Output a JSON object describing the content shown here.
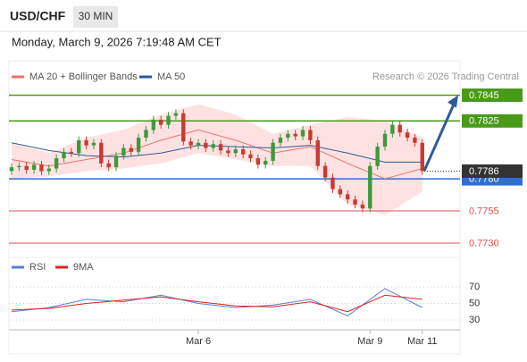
{
  "header": {
    "symbol": "USD/CHF",
    "timeframe": "30 MIN",
    "timestamp": "Monday, March 9, 2026 7:19:48 AM CET"
  },
  "chart_data": [
    {
      "type": "candlestick",
      "source": "Research © 2026 Trading Central",
      "up_color": "#3d9a3d",
      "down_color": "#c93a32",
      "ylim": [
        0.7721,
        0.7853
      ],
      "categories": [
        null,
        null,
        null,
        null,
        null,
        null,
        null,
        null,
        null,
        null,
        null,
        null,
        null,
        null,
        null,
        null,
        null,
        null,
        null,
        null,
        null,
        null,
        null,
        null,
        null,
        "Mar 6",
        null,
        null,
        null,
        null,
        null,
        null,
        null,
        null,
        null,
        null,
        null,
        null,
        null,
        null,
        null,
        null,
        null,
        null,
        null,
        null,
        null,
        null,
        "Mar 9",
        null,
        null,
        null,
        null,
        null,
        null,
        "Mar 11"
      ],
      "open": [
        0.7786,
        0.7789,
        0.779,
        0.7787,
        0.7791,
        0.7786,
        0.7788,
        0.7796,
        0.7801,
        0.78,
        0.781,
        0.7806,
        0.7808,
        0.7792,
        0.7789,
        0.7798,
        0.7804,
        0.7801,
        0.7812,
        0.7818,
        0.7826,
        0.7822,
        0.7829,
        0.7831,
        0.7809,
        0.7806,
        0.7808,
        0.7804,
        0.7807,
        0.7802,
        0.78,
        0.7803,
        0.7799,
        0.7796,
        0.7791,
        0.7794,
        0.7808,
        0.7812,
        0.7815,
        0.7813,
        0.7818,
        0.781,
        0.779,
        0.7781,
        0.7772,
        0.7768,
        0.7764,
        0.776,
        0.7757,
        0.779,
        0.7805,
        0.7815,
        0.7822,
        0.7816,
        0.7812,
        0.7808
      ],
      "high": [
        0.7792,
        0.7793,
        0.7793,
        0.7794,
        0.7794,
        0.7791,
        0.7799,
        0.7804,
        0.7804,
        0.7813,
        0.7813,
        0.7811,
        0.7811,
        0.7795,
        0.7801,
        0.7807,
        0.7807,
        0.7815,
        0.7821,
        0.7829,
        0.7829,
        0.7832,
        0.7834,
        0.7834,
        0.7812,
        0.7811,
        0.7811,
        0.781,
        0.781,
        0.7805,
        0.7806,
        0.7806,
        0.7802,
        0.7799,
        0.7797,
        0.7811,
        0.7815,
        0.7818,
        0.7818,
        0.7821,
        0.7821,
        0.7813,
        0.7793,
        0.7784,
        0.7775,
        0.7771,
        0.7767,
        0.7763,
        0.7793,
        0.7808,
        0.7818,
        0.7825,
        0.7825,
        0.7819,
        0.7815,
        0.7811
      ],
      "low": [
        0.7783,
        0.7786,
        0.7784,
        0.7784,
        0.7783,
        0.7783,
        0.7785,
        0.7793,
        0.7797,
        0.7797,
        0.7803,
        0.7803,
        0.7789,
        0.7786,
        0.7786,
        0.7795,
        0.7798,
        0.7798,
        0.7809,
        0.7815,
        0.7819,
        0.7819,
        0.7826,
        0.7806,
        0.7803,
        0.7803,
        0.7801,
        0.7801,
        0.7799,
        0.7797,
        0.7797,
        0.7796,
        0.7793,
        0.7788,
        0.7788,
        0.7791,
        0.7805,
        0.7809,
        0.781,
        0.781,
        0.7807,
        0.7787,
        0.7778,
        0.7769,
        0.7765,
        0.7761,
        0.7757,
        0.7754,
        0.7754,
        0.7787,
        0.7802,
        0.7812,
        0.7813,
        0.7809,
        0.7805,
        0.7783
      ],
      "close": [
        0.7789,
        0.779,
        0.7787,
        0.7791,
        0.7786,
        0.7788,
        0.7796,
        0.7801,
        0.78,
        0.781,
        0.7806,
        0.7808,
        0.7792,
        0.7789,
        0.7798,
        0.7804,
        0.7801,
        0.7812,
        0.7818,
        0.7826,
        0.7822,
        0.7829,
        0.7831,
        0.7809,
        0.7806,
        0.7808,
        0.7804,
        0.7807,
        0.7802,
        0.78,
        0.7803,
        0.7799,
        0.7796,
        0.7791,
        0.7794,
        0.7808,
        0.7812,
        0.7815,
        0.7813,
        0.7818,
        0.781,
        0.779,
        0.7781,
        0.7772,
        0.7768,
        0.7764,
        0.776,
        0.7757,
        0.779,
        0.7805,
        0.7815,
        0.7822,
        0.7816,
        0.7812,
        0.7808,
        0.7786
      ],
      "x": [
        0,
        5,
        10,
        15,
        20,
        25,
        30,
        35,
        40,
        45,
        50,
        55
      ],
      "series": [
        {
          "name": "MA 20 + Bollinger Bands",
          "color": "#f07070",
          "band_color": "#fdd5d5",
          "values": [
            0.7795,
            0.779,
            0.7795,
            0.78,
            0.781,
            0.7818,
            0.781,
            0.78,
            0.7805,
            0.7792,
            0.778,
            0.7788
          ],
          "upper": [
            0.7808,
            0.78,
            0.7812,
            0.7818,
            0.783,
            0.7838,
            0.783,
            0.7815,
            0.7822,
            0.7828,
            0.7825,
            0.7812
          ],
          "lower": [
            0.778,
            0.7782,
            0.7786,
            0.7788,
            0.7792,
            0.78,
            0.7795,
            0.779,
            0.779,
            0.776,
            0.7752,
            0.777
          ]
        },
        {
          "name": "MA 50",
          "color": "#2d5a99",
          "values": [
            0.7808,
            0.7802,
            0.7798,
            0.7797,
            0.78,
            0.7806,
            0.7805,
            0.7804,
            0.7806,
            0.78,
            0.7793,
            0.7793
          ]
        }
      ],
      "levels": [
        {
          "value": 0.7845,
          "label": "0.7845",
          "color": "#4a9a1a",
          "boxed": true
        },
        {
          "value": 0.7825,
          "label": "0.7825",
          "color": "#4a9a1a",
          "boxed": true
        },
        {
          "value": 0.778,
          "label": "0.7780",
          "color": "#2e6fd6",
          "boxed": true
        },
        {
          "value": 0.7755,
          "label": "0.7755",
          "color": "#e05050",
          "boxed": false
        },
        {
          "value": 0.773,
          "label": "0.7730",
          "color": "#e05050",
          "boxed": false
        }
      ],
      "current": {
        "value": 0.7786,
        "label": "0.7786",
        "color": "#333333"
      },
      "arrow_color": "#2d5a99"
    },
    {
      "type": "line",
      "ylim": [
        20,
        80
      ],
      "yticks": [
        30,
        50,
        70
      ],
      "x": [
        0,
        5,
        10,
        15,
        20,
        25,
        30,
        35,
        40,
        45,
        50,
        55
      ],
      "series": [
        {
          "name": "RSI",
          "color": "#5b7fd6",
          "values": [
            40,
            45,
            55,
            52,
            60,
            50,
            45,
            48,
            55,
            35,
            68,
            45
          ]
        },
        {
          "name": "9MA",
          "color": "#e02020",
          "values": [
            42,
            44,
            50,
            54,
            58,
            52,
            47,
            46,
            52,
            40,
            60,
            55
          ]
        }
      ]
    }
  ]
}
